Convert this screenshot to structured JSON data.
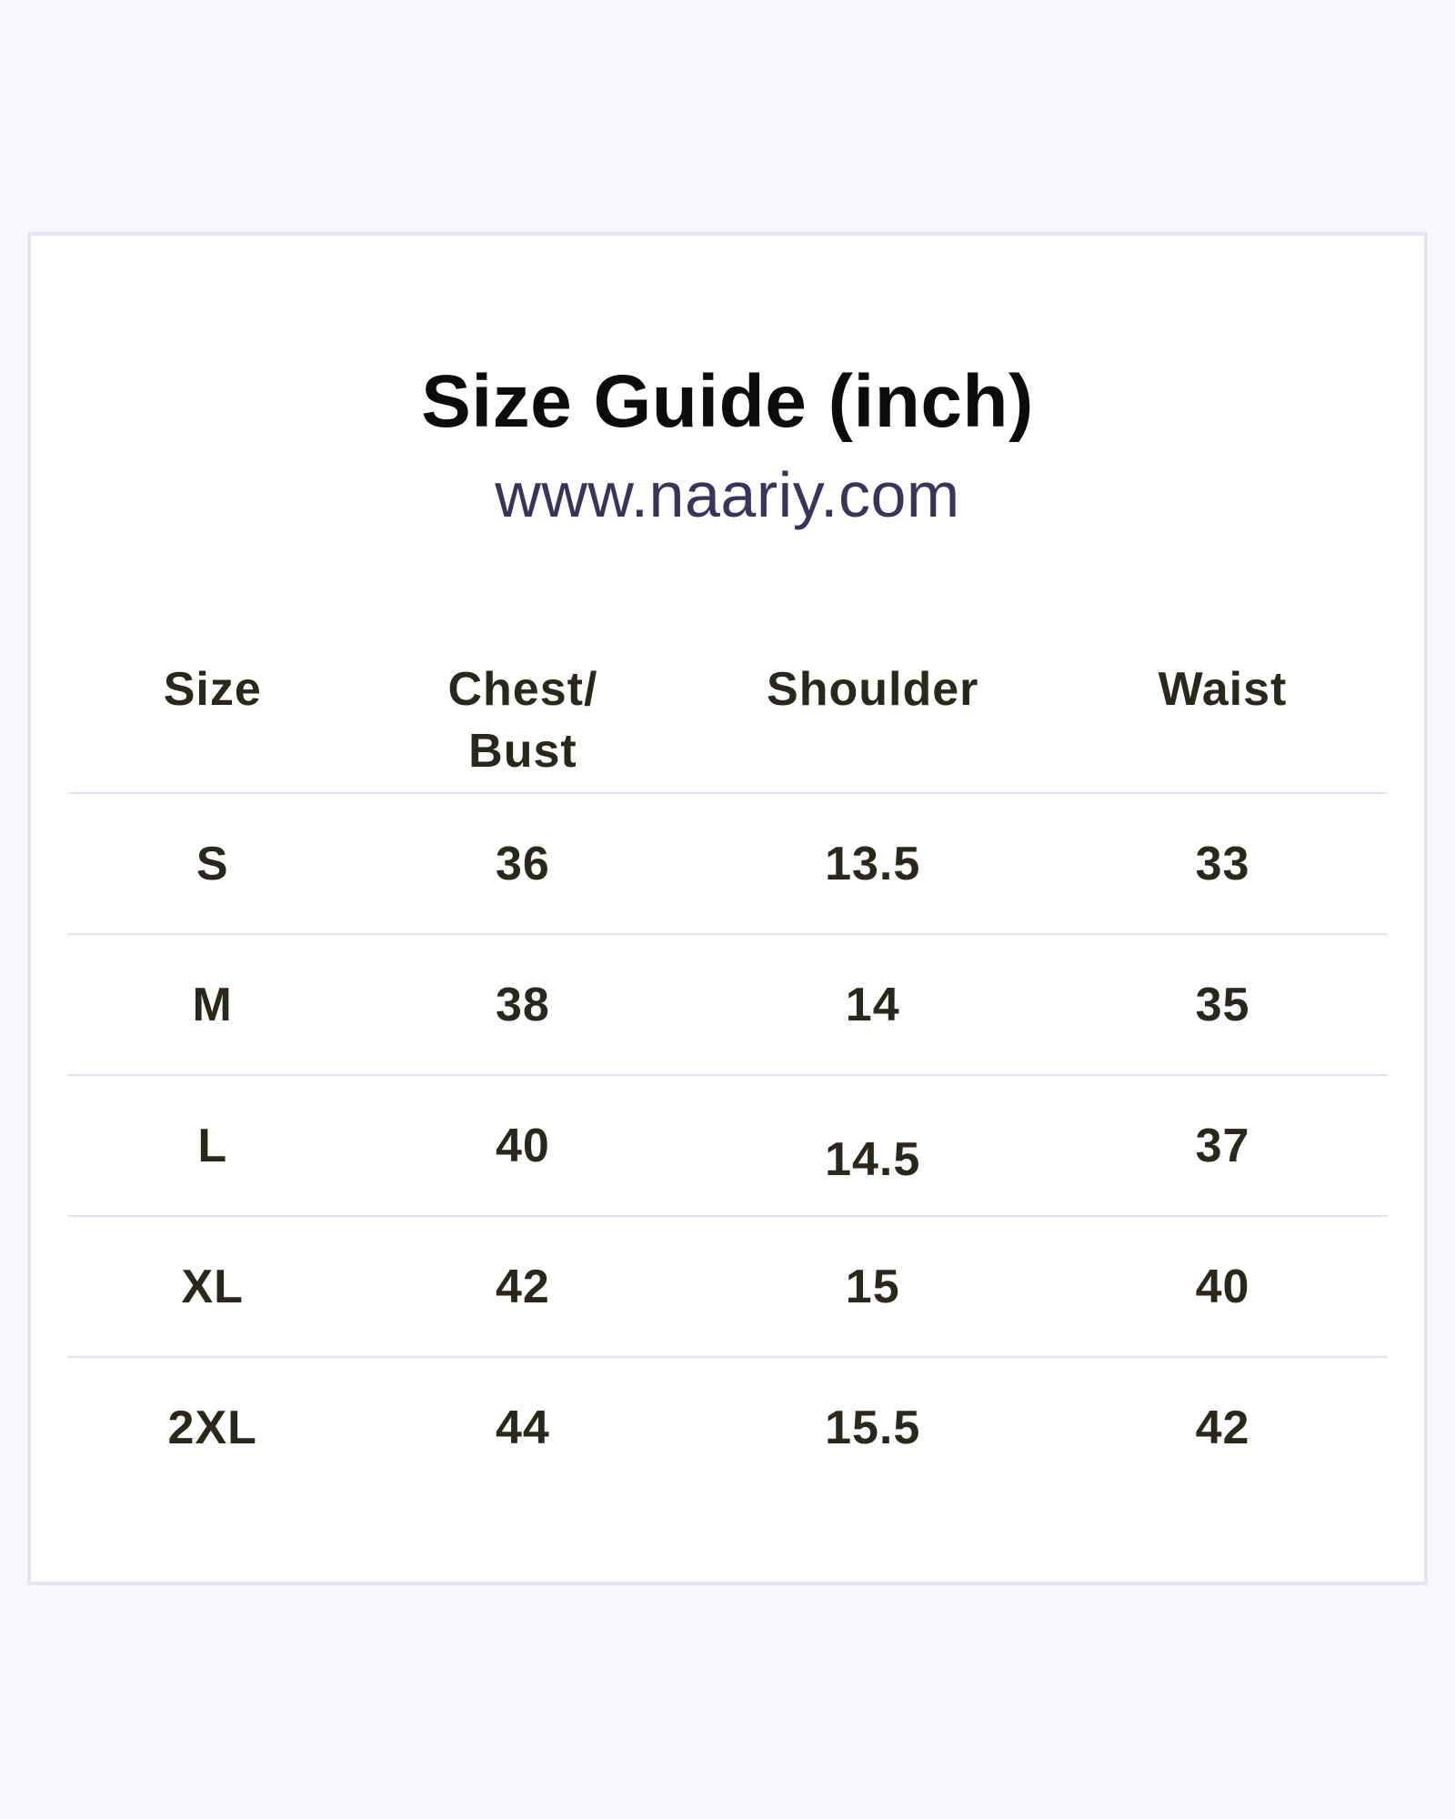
{
  "header": {
    "title": "Size Guide (inch)",
    "website": "www.naariy.com"
  },
  "colors": {
    "page_background": "#f8f7fd",
    "card_background": "#ffffff",
    "card_border": "#e6e3f4",
    "divider": "#e4e1f4",
    "title_text": "#0c0c0c",
    "website_text": "#393459",
    "table_text": "#2a271b"
  },
  "table": {
    "columns": [
      {
        "label": "Size"
      },
      {
        "label": "Chest/",
        "label2": "Bust"
      },
      {
        "label": "Shoulder"
      },
      {
        "label": "Waist"
      }
    ],
    "rows": [
      {
        "values": [
          "S",
          "36",
          "13.5",
          "33"
        ]
      },
      {
        "values": [
          "M",
          "38",
          "14",
          "35"
        ]
      },
      {
        "values": [
          "L",
          "40",
          "14.5",
          "37"
        ]
      },
      {
        "values": [
          "XL",
          "42",
          "15",
          "40"
        ]
      },
      {
        "values": [
          "2XL",
          "44",
          "15.5",
          "42"
        ]
      }
    ]
  },
  "chart_data": {
    "type": "table",
    "title": "Size Guide (inch)",
    "subtitle": "www.naariy.com",
    "units": "inch",
    "columns": [
      "Size",
      "Chest/Bust",
      "Shoulder",
      "Waist"
    ],
    "rows": [
      [
        "S",
        36,
        13.5,
        33
      ],
      [
        "M",
        38,
        14,
        35
      ],
      [
        "L",
        40,
        14.5,
        37
      ],
      [
        "XL",
        42,
        15,
        40
      ],
      [
        "2XL",
        44,
        15.5,
        42
      ]
    ]
  }
}
